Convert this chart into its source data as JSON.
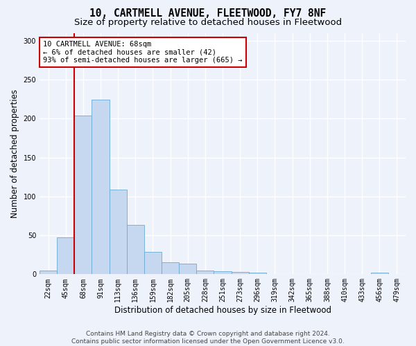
{
  "title": "10, CARTMELL AVENUE, FLEETWOOD, FY7 8NF",
  "subtitle": "Size of property relative to detached houses in Fleetwood",
  "xlabel": "Distribution of detached houses by size in Fleetwood",
  "ylabel": "Number of detached properties",
  "bar_labels": [
    "22sqm",
    "45sqm",
    "68sqm",
    "91sqm",
    "113sqm",
    "136sqm",
    "159sqm",
    "182sqm",
    "205sqm",
    "228sqm",
    "251sqm",
    "273sqm",
    "296sqm",
    "319sqm",
    "342sqm",
    "365sqm",
    "388sqm",
    "410sqm",
    "433sqm",
    "456sqm",
    "479sqm"
  ],
  "bar_values": [
    5,
    47,
    204,
    224,
    109,
    63,
    29,
    15,
    14,
    5,
    4,
    3,
    2,
    0,
    0,
    0,
    0,
    0,
    0,
    2,
    0
  ],
  "bar_color": "#c5d8f0",
  "bar_edge_color": "#6aaad4",
  "vline_color": "#cc0000",
  "annotation_text": "10 CARTMELL AVENUE: 68sqm\n← 6% of detached houses are smaller (42)\n93% of semi-detached houses are larger (665) →",
  "annotation_box_color": "#ffffff",
  "annotation_box_edge": "#cc0000",
  "ylim": [
    0,
    310
  ],
  "yticks": [
    0,
    50,
    100,
    150,
    200,
    250,
    300
  ],
  "footnote": "Contains HM Land Registry data © Crown copyright and database right 2024.\nContains public sector information licensed under the Open Government Licence v3.0.",
  "bg_color": "#eef2fb",
  "plot_bg_color": "#eef2fb",
  "grid_color": "#ffffff",
  "title_fontsize": 10.5,
  "subtitle_fontsize": 9.5,
  "axis_label_fontsize": 8.5,
  "tick_fontsize": 7,
  "footnote_fontsize": 6.5
}
